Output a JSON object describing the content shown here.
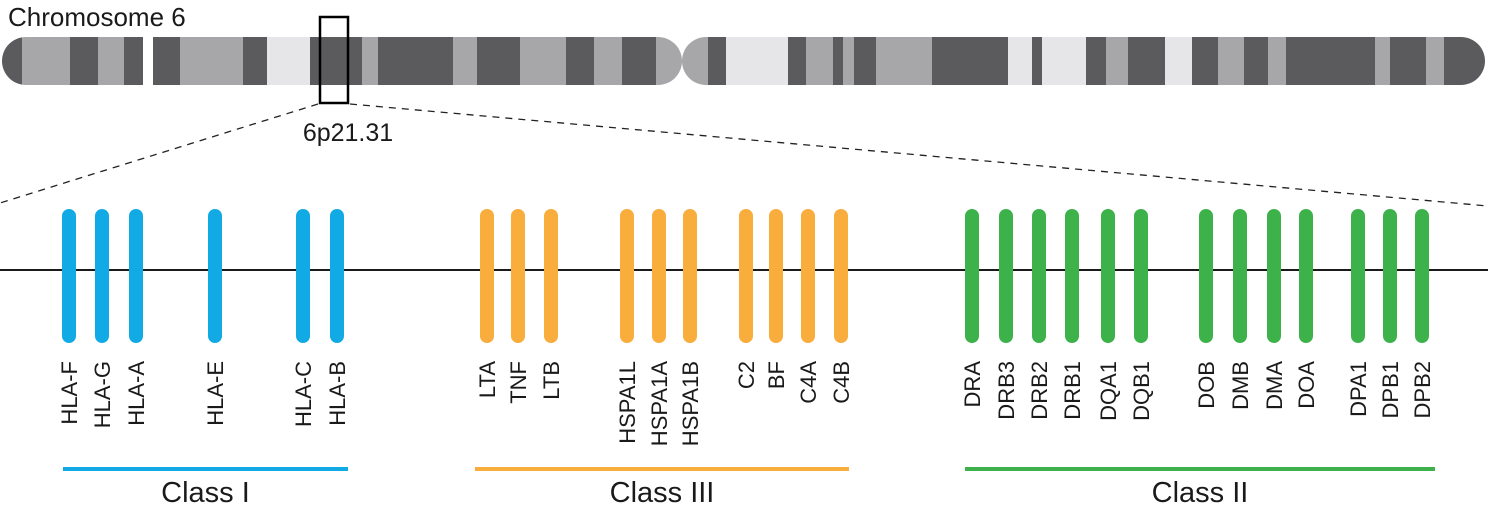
{
  "title": "Chromosome 6",
  "band_label": "6p21.31",
  "colors": {
    "band_dark": "#5b5b5d",
    "band_mid": "#a7a7aa",
    "band_light": "#e6e6e8",
    "band_white": "#ffffff",
    "class_i": "#12aae5",
    "class_iii": "#f9ad3d",
    "class_ii": "#3db24a",
    "line": "#1a1a1a"
  },
  "classes": [
    {
      "label": "Class I",
      "color_key": "class_i",
      "genes": [
        "HLA-F",
        "HLA-G",
        "HLA-A",
        "HLA-E",
        "HLA-C",
        "HLA-B"
      ]
    },
    {
      "label": "Class III",
      "color_key": "class_iii",
      "genes": [
        "LTA",
        "TNF",
        "LTB",
        "HSPA1L",
        "HSPA1A",
        "HSPA1B",
        "C2",
        "BF",
        "C4A",
        "C4B"
      ]
    },
    {
      "label": "Class II",
      "color_key": "class_ii",
      "genes": [
        "DRA",
        "DRB3",
        "DRB2",
        "DRB1",
        "DQA1",
        "DQB1",
        "DOB",
        "DMB",
        "DMA",
        "DOA",
        "DPA1",
        "DPB1",
        "DPB2"
      ]
    }
  ]
}
